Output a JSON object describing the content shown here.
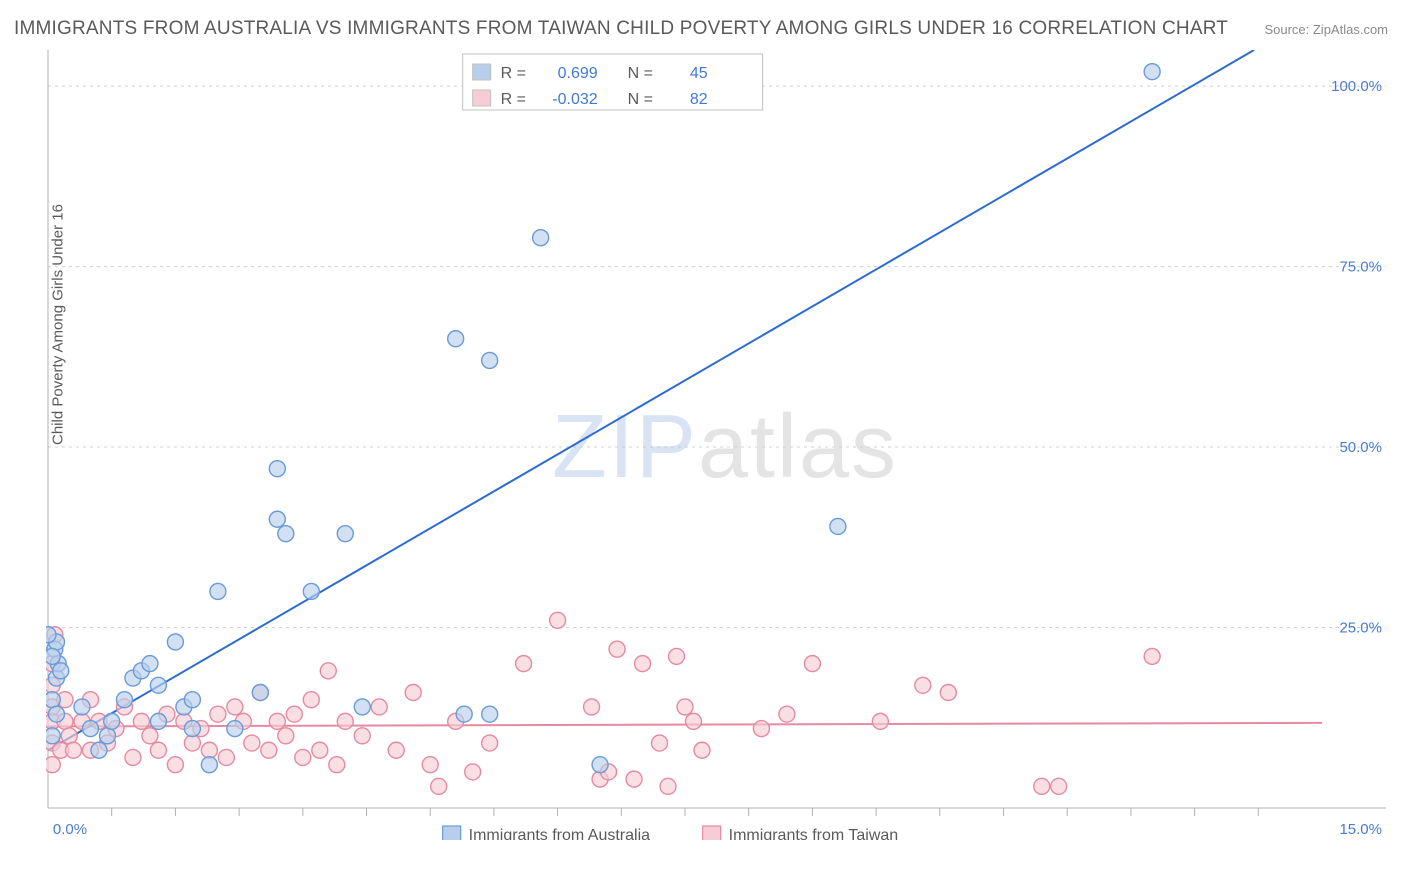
{
  "title": "IMMIGRANTS FROM AUSTRALIA VS IMMIGRANTS FROM TAIWAN CHILD POVERTY AMONG GIRLS UNDER 16 CORRELATION CHART",
  "source": "Source: ZipAtlas.com",
  "ylabel": "Child Poverty Among Girls Under 16",
  "watermark_a": "ZIP",
  "watermark_b": "atlas",
  "chart": {
    "type": "scatter",
    "background_color": "#ffffff",
    "grid_color": "#d0d0d0",
    "axis_color": "#b0b0b0",
    "xlim": [
      0,
      15
    ],
    "ylim": [
      0,
      105
    ],
    "yticks": [
      25.0,
      50.0,
      75.0,
      100.0
    ],
    "ytick_labels": [
      "25.0%",
      "50.0%",
      "75.0%",
      "100.0%"
    ],
    "xtick_labels": {
      "left": "0.0%",
      "right": "15.0%"
    },
    "xtick_minor": [
      0.75,
      1.5,
      2.25,
      3.0,
      3.75,
      4.5,
      5.25,
      6.0,
      6.75,
      7.5,
      8.25,
      9.0,
      9.75,
      10.5,
      11.25,
      12.0,
      12.75,
      13.5,
      14.25
    ],
    "marker_radius": 8,
    "marker_stroke_width": 1.4,
    "line_width": 2,
    "series": [
      {
        "name": "Immigrants from Australia",
        "fill": "#b8cfeb",
        "stroke": "#6a9bd8",
        "line_color": "#2d6bd0",
        "R": "0.699",
        "N": "45",
        "trend": {
          "x1": 0.0,
          "y1": 8.0,
          "x2": 14.2,
          "y2": 105.0
        },
        "points": [
          [
            0.05,
            10
          ],
          [
            0.05,
            15
          ],
          [
            0.08,
            22
          ],
          [
            0.1,
            13
          ],
          [
            0.1,
            18
          ],
          [
            0.12,
            20
          ],
          [
            0.1,
            23
          ],
          [
            0.15,
            19
          ],
          [
            0.0,
            24
          ],
          [
            0.05,
            21
          ],
          [
            0.4,
            14
          ],
          [
            0.5,
            11
          ],
          [
            0.6,
            8
          ],
          [
            0.7,
            10
          ],
          [
            0.75,
            12
          ],
          [
            0.9,
            15
          ],
          [
            1.0,
            18
          ],
          [
            1.1,
            19
          ],
          [
            1.2,
            20
          ],
          [
            1.3,
            17
          ],
          [
            1.3,
            12
          ],
          [
            1.5,
            23
          ],
          [
            1.6,
            14
          ],
          [
            1.7,
            15
          ],
          [
            1.7,
            11
          ],
          [
            1.9,
            6
          ],
          [
            2.0,
            30
          ],
          [
            2.2,
            11
          ],
          [
            2.5,
            16
          ],
          [
            2.7,
            40
          ],
          [
            2.8,
            38
          ],
          [
            2.7,
            47
          ],
          [
            3.1,
            30
          ],
          [
            3.5,
            38
          ],
          [
            3.7,
            14
          ],
          [
            4.9,
            13
          ],
          [
            5.2,
            13
          ],
          [
            4.8,
            65
          ],
          [
            5.2,
            62
          ],
          [
            5.8,
            79
          ],
          [
            5.8,
            102
          ],
          [
            6.5,
            6
          ],
          [
            9.3,
            39
          ],
          [
            13.0,
            102
          ]
        ]
      },
      {
        "name": "Immigrants from Taiwan",
        "fill": "#f6cdd6",
        "stroke": "#e68aa2",
        "line_color": "#e68aa2",
        "R": "-0.032",
        "N": "82",
        "trend": {
          "x1": 0.0,
          "y1": 11.3,
          "x2": 15.0,
          "y2": 11.8
        },
        "points": [
          [
            0.05,
            6
          ],
          [
            0.05,
            9
          ],
          [
            0.05,
            12
          ],
          [
            0.05,
            14
          ],
          [
            0.05,
            17
          ],
          [
            0.05,
            20
          ],
          [
            0.08,
            24
          ],
          [
            0.15,
            8
          ],
          [
            0.2,
            12
          ],
          [
            0.2,
            15
          ],
          [
            0.25,
            10
          ],
          [
            0.3,
            8
          ],
          [
            0.4,
            12
          ],
          [
            0.5,
            8
          ],
          [
            0.5,
            15
          ],
          [
            0.6,
            12
          ],
          [
            0.7,
            9
          ],
          [
            0.8,
            11
          ],
          [
            0.9,
            14
          ],
          [
            1.0,
            7
          ],
          [
            1.1,
            12
          ],
          [
            1.2,
            10
          ],
          [
            1.3,
            8
          ],
          [
            1.4,
            13
          ],
          [
            1.5,
            6
          ],
          [
            1.6,
            12
          ],
          [
            1.7,
            9
          ],
          [
            1.8,
            11
          ],
          [
            1.9,
            8
          ],
          [
            2.0,
            13
          ],
          [
            2.1,
            7
          ],
          [
            2.2,
            14
          ],
          [
            2.3,
            12
          ],
          [
            2.4,
            9
          ],
          [
            2.5,
            16
          ],
          [
            2.6,
            8
          ],
          [
            2.7,
            12
          ],
          [
            2.8,
            10
          ],
          [
            2.9,
            13
          ],
          [
            3.0,
            7
          ],
          [
            3.1,
            15
          ],
          [
            3.2,
            8
          ],
          [
            3.3,
            19
          ],
          [
            3.4,
            6
          ],
          [
            3.5,
            12
          ],
          [
            3.7,
            10
          ],
          [
            3.9,
            14
          ],
          [
            4.1,
            8
          ],
          [
            4.3,
            16
          ],
          [
            4.5,
            6
          ],
          [
            4.6,
            3
          ],
          [
            4.8,
            12
          ],
          [
            5.0,
            5
          ],
          [
            5.2,
            9
          ],
          [
            5.6,
            20
          ],
          [
            6.0,
            26
          ],
          [
            6.4,
            14
          ],
          [
            6.5,
            4
          ],
          [
            6.6,
            5
          ],
          [
            6.7,
            22
          ],
          [
            6.9,
            4
          ],
          [
            7.0,
            20
          ],
          [
            7.2,
            9
          ],
          [
            7.3,
            3
          ],
          [
            7.4,
            21
          ],
          [
            7.5,
            14
          ],
          [
            7.6,
            12
          ],
          [
            7.7,
            8
          ],
          [
            8.4,
            11
          ],
          [
            8.7,
            13
          ],
          [
            9.0,
            20
          ],
          [
            9.8,
            12
          ],
          [
            10.3,
            17
          ],
          [
            10.6,
            16
          ],
          [
            11.7,
            3
          ],
          [
            11.9,
            3
          ],
          [
            13.0,
            21
          ]
        ]
      }
    ]
  },
  "legend_top": {
    "border_color": "#c0c0c0",
    "label_R": "R =",
    "label_N": "N ="
  },
  "legend_bottom": {
    "series1": "Immigrants from Australia",
    "series2": "Immigrants from Taiwan"
  }
}
